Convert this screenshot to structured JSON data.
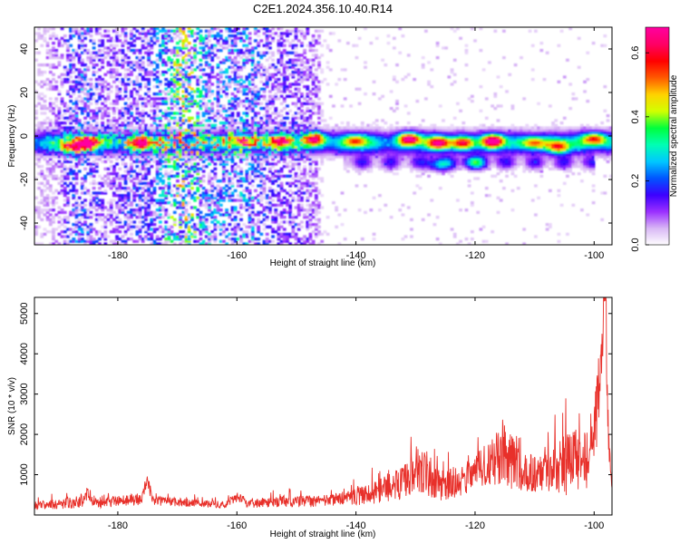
{
  "title": "C2E1.2024.356.10.40.R14",
  "chart_data": [
    {
      "type": "heatmap",
      "xlabel": "Height of straight line (km)",
      "ylabel": "Frequency (Hz)",
      "xlim": [
        -194,
        -97
      ],
      "ylim": [
        -50,
        50
      ],
      "xticks": [
        -180,
        -160,
        -140,
        -120,
        -100
      ],
      "yticks": [
        -40,
        -20,
        0,
        20,
        40
      ],
      "colorbar": {
        "label": "Normalized spectral amplitude",
        "range": [
          0.0,
          0.68
        ],
        "ticks": [
          0.0,
          0.2,
          0.4,
          0.6
        ],
        "colormap": [
          "#ffffff",
          "#d9b8f5",
          "#9b30ff",
          "#3c00ff",
          "#0055ff",
          "#00c8ff",
          "#00ffb4",
          "#00ff3c",
          "#d2ff00",
          "#ffd200",
          "#ff5a00",
          "#ff0000",
          "#ff0064",
          "#ff00a0"
        ]
      },
      "main_band": {
        "center_hz": -3,
        "width_hz": 8,
        "peak_amplitude": 0.68
      },
      "secondary_band": {
        "center_hz": -12,
        "x_start_km": -142,
        "x_end_km": -100,
        "peak_amplitude": 0.35
      },
      "hotspots": [
        {
          "x": -188,
          "y": -5,
          "v": 0.4
        },
        {
          "x": -185,
          "y": -3,
          "v": 0.68
        },
        {
          "x": -176,
          "y": -3,
          "v": 0.55
        },
        {
          "x": -159,
          "y": -2,
          "v": 0.45
        },
        {
          "x": -153,
          "y": -2,
          "v": 0.5
        },
        {
          "x": -147,
          "y": -1,
          "v": 0.62
        },
        {
          "x": -140,
          "y": -2,
          "v": 0.42
        },
        {
          "x": -131,
          "y": -1,
          "v": 0.68
        },
        {
          "x": -126,
          "y": -3,
          "v": 0.6
        },
        {
          "x": -122,
          "y": -3,
          "v": 0.5
        },
        {
          "x": -117,
          "y": -2,
          "v": 0.68
        },
        {
          "x": -110,
          "y": -3,
          "v": 0.45
        },
        {
          "x": -106,
          "y": -5,
          "v": 0.5
        },
        {
          "x": -100,
          "y": -1,
          "v": 0.55
        },
        {
          "x": -126,
          "y": -13,
          "v": 0.3
        },
        {
          "x": -120,
          "y": -12,
          "v": 0.3
        }
      ]
    },
    {
      "type": "line",
      "xlabel": "Height of straight line (km)",
      "ylabel": "SNR (10 * v/v)",
      "xlim": [
        -194,
        -97
      ],
      "ylim": [
        0,
        5400
      ],
      "xticks": [
        -180,
        -160,
        -140,
        -120,
        -100
      ],
      "yticks": [
        1000,
        2000,
        3000,
        4000,
        5000
      ],
      "series": [
        {
          "color": "#e8302a",
          "envelope": [
            {
              "x": -194,
              "base": 250,
              "amp": 180
            },
            {
              "x": -186,
              "base": 300,
              "amp": 250
            },
            {
              "x": -185,
              "base": 500,
              "amp": 250
            },
            {
              "x": -184,
              "base": 280,
              "amp": 200
            },
            {
              "x": -176,
              "base": 400,
              "amp": 250
            },
            {
              "x": -175,
              "base": 800,
              "amp": 300
            },
            {
              "x": -174,
              "base": 350,
              "amp": 200
            },
            {
              "x": -162,
              "base": 250,
              "amp": 150
            },
            {
              "x": -160,
              "base": 450,
              "amp": 200
            },
            {
              "x": -158,
              "base": 300,
              "amp": 200
            },
            {
              "x": -145,
              "base": 350,
              "amp": 250
            },
            {
              "x": -138,
              "base": 500,
              "amp": 400
            },
            {
              "x": -132,
              "base": 800,
              "amp": 700
            },
            {
              "x": -130,
              "base": 1200,
              "amp": 1000
            },
            {
              "x": -126,
              "base": 700,
              "amp": 600
            },
            {
              "x": -122,
              "base": 900,
              "amp": 700
            },
            {
              "x": -118,
              "base": 1300,
              "amp": 900
            },
            {
              "x": -115,
              "base": 1500,
              "amp": 1300
            },
            {
              "x": -112,
              "base": 1000,
              "amp": 800
            },
            {
              "x": -108,
              "base": 1100,
              "amp": 900
            },
            {
              "x": -104,
              "base": 1300,
              "amp": 1400
            },
            {
              "x": -101,
              "base": 1400,
              "amp": 1200
            },
            {
              "x": -99,
              "base": 3000,
              "amp": 1500
            },
            {
              "x": -98.2,
              "base": 5000,
              "amp": 400
            },
            {
              "x": -97.5,
              "base": 1500,
              "amp": 800
            },
            {
              "x": -97,
              "base": 500,
              "amp": 300
            }
          ]
        }
      ]
    }
  ]
}
